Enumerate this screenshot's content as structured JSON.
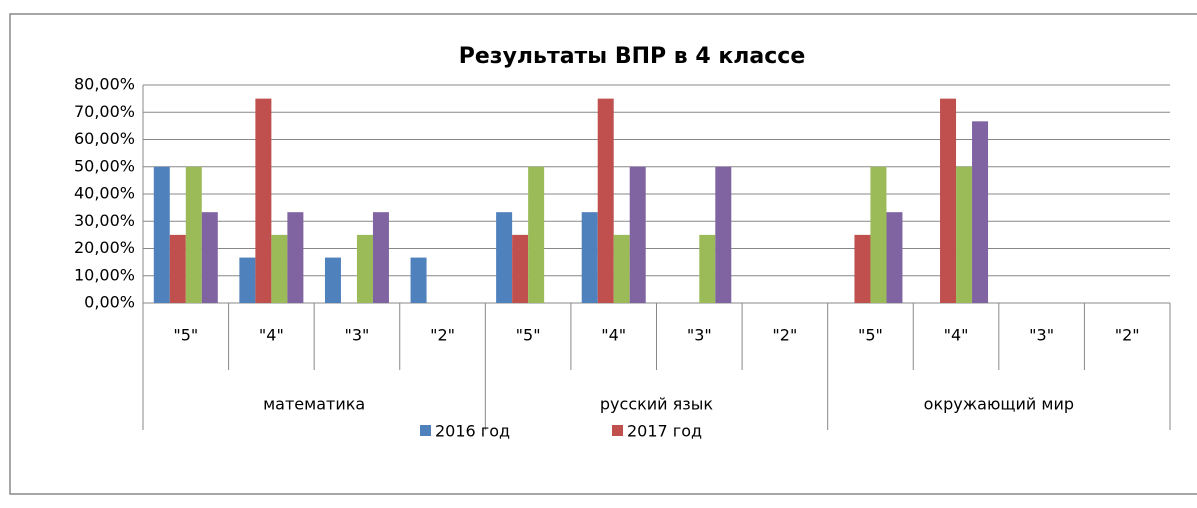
{
  "chart_data": {
    "type": "bar",
    "title": "Результаты ВПР в 4 классе",
    "groups": [
      {
        "label": "математика",
        "categories": [
          "\"5\"",
          "\"4\"",
          "\"3\"",
          "\"2\""
        ]
      },
      {
        "label": "русский язык",
        "categories": [
          "\"5\"",
          "\"4\"",
          "\"3\"",
          "\"2\""
        ]
      },
      {
        "label": "окружающий мир",
        "categories": [
          "\"5\"",
          "\"4\"",
          "\"3\"",
          "\"2\""
        ]
      }
    ],
    "series": [
      {
        "name": "2016 год",
        "color": "#4f81bd",
        "values": [
          50,
          16.67,
          16.67,
          16.67,
          33.33,
          33.33,
          0,
          0,
          0,
          0,
          0,
          0
        ]
      },
      {
        "name": "2017 год",
        "color": "#c0504d",
        "values": [
          25,
          75,
          0,
          0,
          25,
          75,
          0,
          0,
          25,
          75,
          0,
          0
        ]
      },
      {
        "color": "#9bbb59",
        "values": [
          50,
          25,
          25,
          0,
          50,
          25,
          25,
          0,
          50,
          50,
          0,
          0
        ]
      },
      {
        "color": "#8064a2",
        "values": [
          33.33,
          33.33,
          33.33,
          0,
          0,
          50,
          50,
          0,
          33.33,
          66.67,
          0,
          0
        ]
      }
    ],
    "ylim": [
      0,
      80
    ],
    "yticks": [
      {
        "value": 0,
        "label": "0,00%"
      },
      {
        "value": 10,
        "label": "10,00%"
      },
      {
        "value": 20,
        "label": "20,00%"
      },
      {
        "value": 30,
        "label": "30,00%"
      },
      {
        "value": 40,
        "label": "40,00%"
      },
      {
        "value": 50,
        "label": "50,00%"
      },
      {
        "value": 60,
        "label": "60,00%"
      },
      {
        "value": 70,
        "label": "70,00%"
      },
      {
        "value": 80,
        "label": "80,00%"
      }
    ],
    "grid": true,
    "legend": "bottom"
  }
}
